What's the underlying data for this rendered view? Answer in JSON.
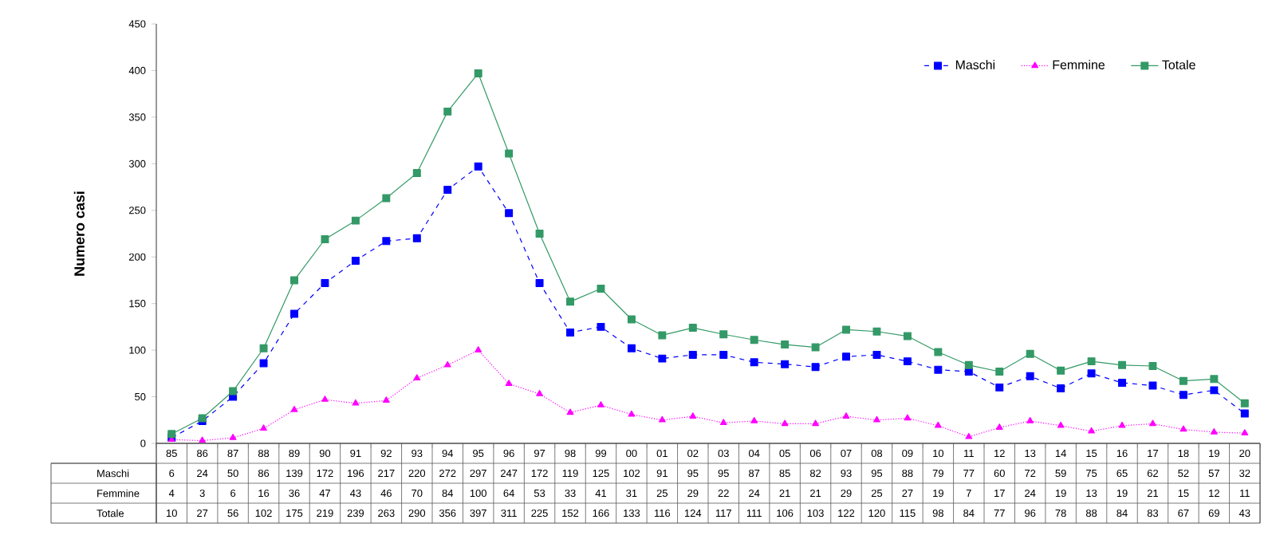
{
  "chart_data": {
    "type": "line",
    "ylabel": "Numero casi",
    "categories": [
      "85",
      "86",
      "87",
      "88",
      "89",
      "90",
      "91",
      "92",
      "93",
      "94",
      "95",
      "96",
      "97",
      "98",
      "99",
      "00",
      "01",
      "02",
      "03",
      "04",
      "05",
      "06",
      "07",
      "08",
      "09",
      "10",
      "11",
      "12",
      "13",
      "14",
      "15",
      "16",
      "17",
      "18",
      "19",
      "20"
    ],
    "series": [
      {
        "name": "Maschi",
        "color": "#0000ff",
        "marker": "square",
        "line_style": "dashed",
        "values": [
          6,
          24,
          50,
          86,
          139,
          172,
          196,
          217,
          220,
          272,
          297,
          247,
          172,
          119,
          125,
          102,
          91,
          95,
          95,
          87,
          85,
          82,
          93,
          95,
          88,
          79,
          77,
          60,
          72,
          59,
          75,
          65,
          62,
          52,
          57,
          32
        ]
      },
      {
        "name": "Femmine",
        "color": "#ff00ff",
        "marker": "triangle",
        "line_style": "dotted",
        "values": [
          4,
          3,
          6,
          16,
          36,
          47,
          43,
          46,
          70,
          84,
          100,
          64,
          53,
          33,
          41,
          31,
          25,
          29,
          22,
          24,
          21,
          21,
          29,
          25,
          27,
          19,
          7,
          17,
          24,
          19,
          13,
          19,
          21,
          15,
          12,
          11
        ]
      },
      {
        "name": "Totale",
        "color": "#339966",
        "marker": "square",
        "line_style": "solid",
        "values": [
          10,
          27,
          56,
          102,
          175,
          219,
          239,
          263,
          290,
          356,
          397,
          311,
          225,
          152,
          166,
          133,
          116,
          124,
          117,
          111,
          106,
          103,
          122,
          120,
          115,
          98,
          84,
          77,
          96,
          78,
          88,
          84,
          83,
          67,
          69,
          43
        ]
      }
    ],
    "ylim": [
      0,
      450
    ],
    "yticks": [
      0,
      50,
      100,
      150,
      200,
      250,
      300,
      350,
      400,
      450
    ],
    "legend": "top right",
    "data_labels": true
  }
}
